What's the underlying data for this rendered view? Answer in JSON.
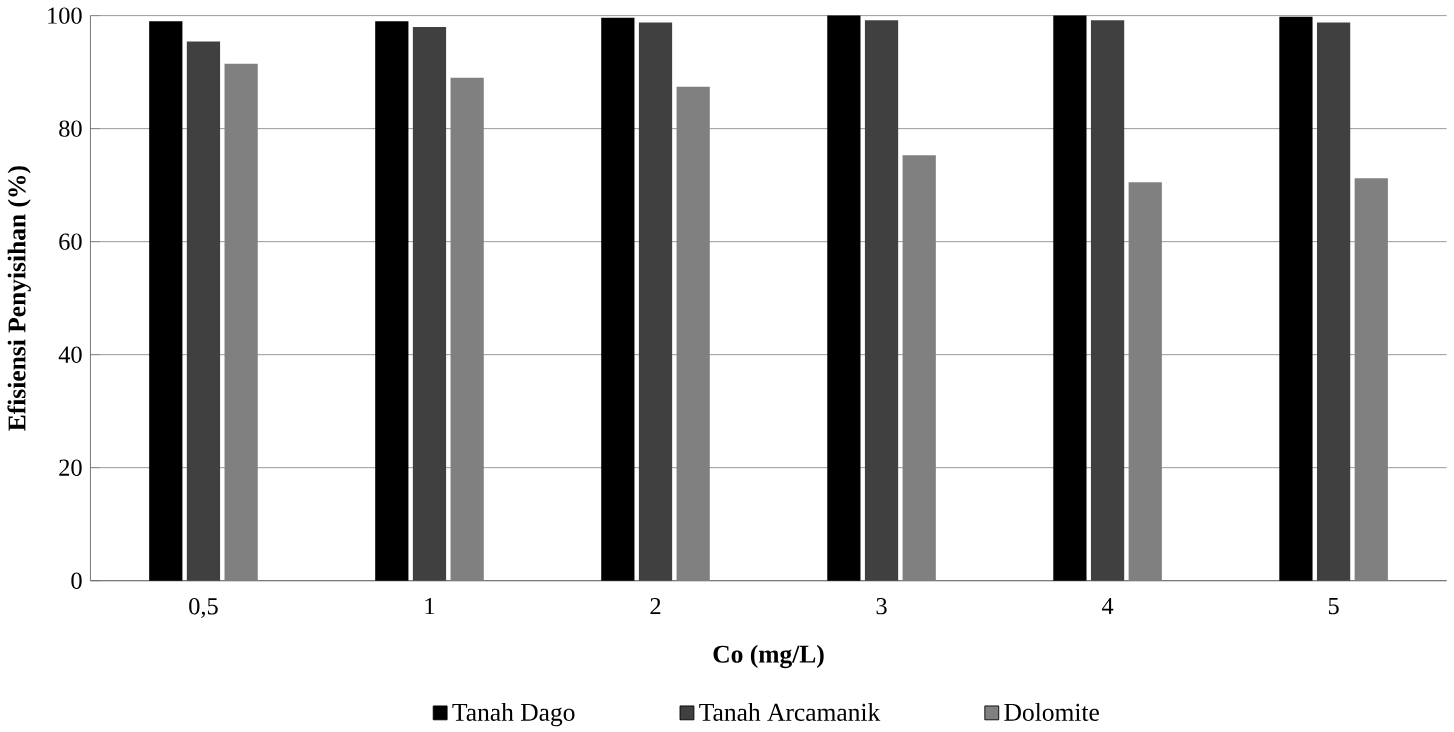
{
  "chart_data": {
    "type": "bar",
    "xlabel": "Co (mg/L)",
    "ylabel": "Efisiensi Penyisihan (%)",
    "categories": [
      "0,5",
      "1",
      "2",
      "3",
      "4",
      "5"
    ],
    "series": [
      {
        "name": "Tanah Dago",
        "color": "#000000",
        "values": [
          99,
          99,
          99.6,
          100,
          100,
          99.8
        ]
      },
      {
        "name": "Tanah Arcamanik",
        "color": "#404040",
        "values": [
          95.4,
          98,
          98.8,
          99.2,
          99.2,
          98.8
        ]
      },
      {
        "name": "Dolomite",
        "color": "#808080",
        "values": [
          91.5,
          89,
          87.4,
          75.3,
          70.5,
          71.2
        ]
      }
    ],
    "ylim": [
      0,
      100
    ],
    "yticks": [
      0,
      20,
      40,
      60,
      80,
      100
    ],
    "grid": "y",
    "legend": "bottom"
  }
}
